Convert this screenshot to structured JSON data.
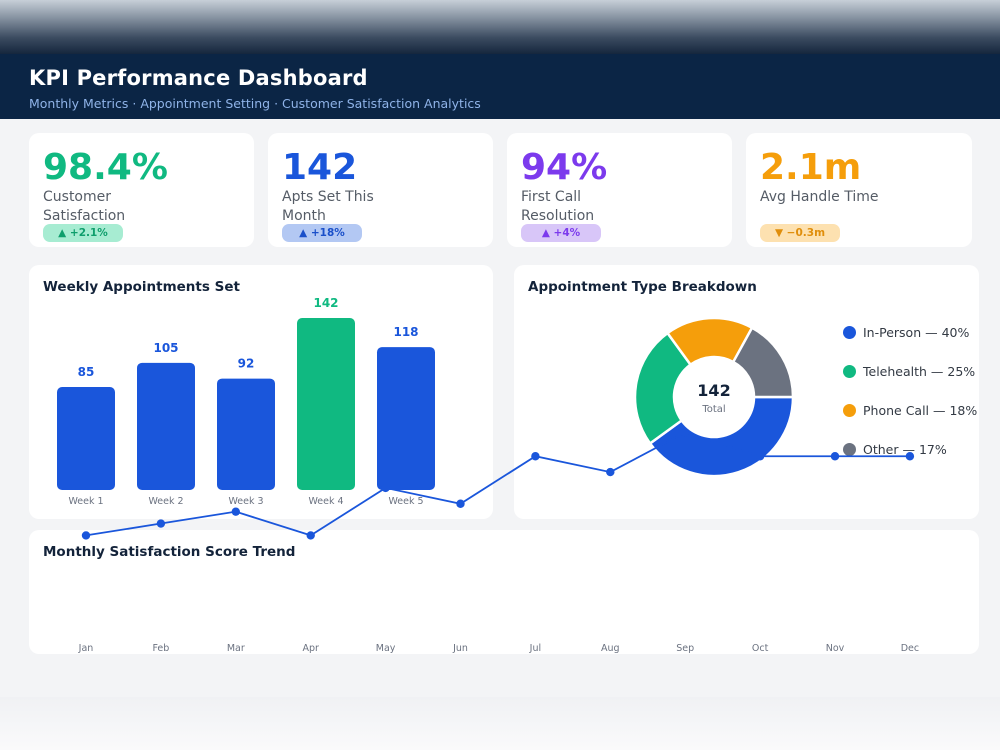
{
  "header": {
    "title": "KPI Performance Dashboard",
    "subtitle": "Monthly Metrics · Appointment Setting · Customer Satisfaction Analytics"
  },
  "kpis": [
    {
      "value": "98.4%",
      "label": "Customer Satisfaction",
      "badge": "▲ +2.1%",
      "color": "#10b981",
      "badge_bg": "#a7ecd2",
      "badge_fg": "#0f9e6c"
    },
    {
      "value": "142",
      "label": "Apts Set This Month",
      "badge": "▲ +18%",
      "color": "#1a56db",
      "badge_bg": "#b3c8f3",
      "badge_fg": "#1a4fc9"
    },
    {
      "value": "94%",
      "label": "First Call Resolution",
      "badge": "▲ +4%",
      "color": "#7c3aed",
      "badge_bg": "#d8c6f8",
      "badge_fg": "#7c3aed"
    },
    {
      "value": "2.1m",
      "label": "Avg Handle Time",
      "badge": "▼ −0.3m",
      "color": "#f59e0b",
      "badge_bg": "#fde1b0",
      "badge_fg": "#e08e0b"
    }
  ],
  "weekly": {
    "title": "Weekly Appointments Set"
  },
  "breakdown": {
    "title": "Appointment Type Breakdown",
    "center_value": "142",
    "center_label": "Total",
    "legend": [
      "In-Person — 40%",
      "Telehealth — 25%",
      "Phone Call — 18%",
      "Other — 17%"
    ]
  },
  "trend": {
    "title": "Monthly Satisfaction Score Trend"
  },
  "chart_data": [
    {
      "type": "bar",
      "title": "Weekly Appointments Set",
      "categories": [
        "Week 1",
        "Week 2",
        "Week 3",
        "Week 4",
        "Week 5"
      ],
      "values": [
        85,
        105,
        92,
        142,
        118
      ],
      "colors": [
        "#1a56db",
        "#1a56db",
        "#1a56db",
        "#10b981",
        "#1a56db"
      ],
      "ylim": [
        0,
        142
      ],
      "grid": false
    },
    {
      "type": "pie",
      "title": "Appointment Type Breakdown",
      "labels": [
        "In-Person",
        "Telehealth",
        "Phone Call",
        "Other"
      ],
      "values": [
        40,
        25,
        18,
        17
      ],
      "colors": [
        "#1a56db",
        "#10b981",
        "#f59e0b",
        "#6b7280"
      ],
      "legend": "right"
    },
    {
      "type": "line",
      "title": "Monthly Satisfaction Score Trend",
      "x": [
        "Jan",
        "Feb",
        "Mar",
        "Apr",
        "May",
        "Jun",
        "Jul",
        "Aug",
        "Sep",
        "Oct",
        "Nov",
        "Dec"
      ],
      "series": [
        {
          "values": [
            95.2,
            95.5,
            95.8,
            95.2,
            96.4,
            96.0,
            97.2,
            96.8,
            97.8,
            97.2,
            97.2,
            97.2
          ],
          "color": "#1a56db"
        }
      ],
      "ylim": [
        94.2,
        99.0
      ],
      "grid": false
    }
  ]
}
